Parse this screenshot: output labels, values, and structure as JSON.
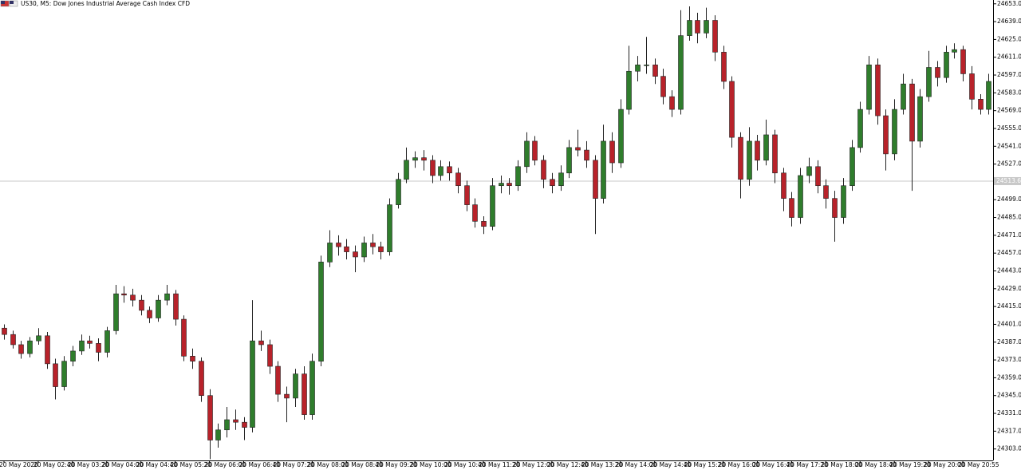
{
  "chart_data": {
    "type": "candlestick",
    "title": "US30, M5:  Dow Jones Industrial Average Cash Index CFD",
    "up_color": "#2f7d2c",
    "down_color": "#b8222a",
    "price_line": 24513.6,
    "ylim": [
      24294,
      24656
    ],
    "yticks": [
      {
        "value": 24303,
        "label": "24303.0"
      },
      {
        "value": 24317,
        "label": "24317.0"
      },
      {
        "value": 24331,
        "label": "24331.0"
      },
      {
        "value": 24345,
        "label": "24345.0"
      },
      {
        "value": 24359,
        "label": "24359.0"
      },
      {
        "value": 24373,
        "label": "24373.0"
      },
      {
        "value": 24387,
        "label": "24387.0"
      },
      {
        "value": 24401,
        "label": "24401.0"
      },
      {
        "value": 24415,
        "label": "24415.0"
      },
      {
        "value": 24429,
        "label": "24429.0"
      },
      {
        "value": 24443,
        "label": "24443.0"
      },
      {
        "value": 24457,
        "label": "24457.0"
      },
      {
        "value": 24471,
        "label": "24471.0"
      },
      {
        "value": 24485,
        "label": "24485.0"
      },
      {
        "value": 24499,
        "label": "24499.0"
      },
      {
        "value": 24513,
        "label": "24513.0"
      },
      {
        "value": 24527,
        "label": "24527.0"
      },
      {
        "value": 24541,
        "label": "24541.0"
      },
      {
        "value": 24555,
        "label": "24555.0"
      },
      {
        "value": 24569,
        "label": "24569.0"
      },
      {
        "value": 24583,
        "label": "24583.0"
      },
      {
        "value": 24597,
        "label": "24597.0"
      },
      {
        "value": 24611,
        "label": "24611.0"
      },
      {
        "value": 24625,
        "label": "24625.0"
      },
      {
        "value": 24639,
        "label": "24639.0"
      },
      {
        "value": 24653,
        "label": "24653.0"
      }
    ],
    "categories": [
      "20 May 2020",
      null,
      null,
      null,
      "20 May 02:40",
      null,
      null,
      null,
      "20 May 03:20",
      null,
      null,
      null,
      "20 May 04:00",
      null,
      null,
      null,
      "20 May 04:40",
      null,
      null,
      null,
      "20 May 05:20",
      null,
      null,
      null,
      "20 May 06:00",
      null,
      null,
      null,
      "20 May 06:40",
      null,
      null,
      null,
      "20 May 07:20",
      null,
      null,
      null,
      "20 May 08:00",
      null,
      null,
      null,
      "20 May 08:40",
      null,
      null,
      null,
      "20 May 09:20",
      null,
      null,
      null,
      "20 May 10:00",
      null,
      null,
      null,
      "20 May 10:40",
      null,
      null,
      null,
      "20 May 11:20",
      null,
      null,
      null,
      "20 May 12:00",
      null,
      null,
      null,
      "20 May 12:40",
      null,
      null,
      null,
      "20 May 13:20",
      null,
      null,
      null,
      "20 May 14:00",
      null,
      null,
      null,
      "20 May 14:40",
      null,
      null,
      null,
      "20 May 15:20",
      null,
      null,
      null,
      "20 May 16:00",
      null,
      null,
      null,
      "20 May 16:40",
      null,
      null,
      null,
      "20 May 17:20",
      null,
      null,
      null,
      "20 May 18:00",
      null,
      null,
      null,
      "20 May 18:40",
      null,
      null,
      null,
      "20 May 19:20",
      null,
      null,
      null,
      "20 May 20:00",
      null,
      null,
      null,
      "20 May 20:55",
      null,
      null,
      null
    ],
    "ohlc": [
      [
        24398,
        24401,
        24389,
        24393
      ],
      [
        24393,
        24396,
        24382,
        24385
      ],
      [
        24385,
        24388,
        24374,
        24378
      ],
      [
        24378,
        24391,
        24375,
        24388
      ],
      [
        24388,
        24398,
        24385,
        24392
      ],
      [
        24392,
        24395,
        24366,
        24370
      ],
      [
        24370,
        24374,
        24342,
        24352
      ],
      [
        24352,
        24376,
        24349,
        24372
      ],
      [
        24372,
        24384,
        24368,
        24380
      ],
      [
        24380,
        24393,
        24377,
        24388
      ],
      [
        24388,
        24392,
        24382,
        24386
      ],
      [
        24386,
        24390,
        24372,
        24379
      ],
      [
        24379,
        24399,
        24375,
        24396
      ],
      [
        24396,
        24432,
        24393,
        24425
      ],
      [
        24425,
        24431,
        24418,
        24424
      ],
      [
        24424,
        24429,
        24415,
        24420
      ],
      [
        24420,
        24424,
        24408,
        24412
      ],
      [
        24412,
        24415,
        24402,
        24406
      ],
      [
        24406,
        24424,
        24403,
        24420
      ],
      [
        24420,
        24432,
        24416,
        24425
      ],
      [
        24425,
        24428,
        24400,
        24405
      ],
      [
        24405,
        24408,
        24372,
        24376
      ],
      [
        24376,
        24382,
        24366,
        24372
      ],
      [
        24372,
        24375,
        24340,
        24345
      ],
      [
        24345,
        24350,
        24295,
        24310
      ],
      [
        24310,
        24323,
        24304,
        24318
      ],
      [
        24318,
        24336,
        24312,
        24326
      ],
      [
        24326,
        24334,
        24318,
        24324
      ],
      [
        24324,
        24328,
        24310,
        24320
      ],
      [
        24320,
        24420,
        24316,
        24388
      ],
      [
        24388,
        24396,
        24380,
        24385
      ],
      [
        24385,
        24389,
        24362,
        24368
      ],
      [
        24368,
        24372,
        24340,
        24346
      ],
      [
        24346,
        24352,
        24324,
        24343
      ],
      [
        24343,
        24366,
        24336,
        24362
      ],
      [
        24362,
        24368,
        24326,
        24330
      ],
      [
        24330,
        24378,
        24326,
        24372
      ],
      [
        24372,
        24455,
        24368,
        24450
      ],
      [
        24450,
        24475,
        24446,
        24465
      ],
      [
        24465,
        24471,
        24455,
        24462
      ],
      [
        24462,
        24468,
        24452,
        24458
      ],
      [
        24458,
        24463,
        24442,
        24454
      ],
      [
        24454,
        24470,
        24450,
        24465
      ],
      [
        24465,
        24472,
        24456,
        24462
      ],
      [
        24462,
        24466,
        24452,
        24458
      ],
      [
        24458,
        24500,
        24455,
        24495
      ],
      [
        24495,
        24520,
        24492,
        24515
      ],
      [
        24515,
        24540,
        24512,
        24530
      ],
      [
        24530,
        24537,
        24524,
        24532
      ],
      [
        24532,
        24538,
        24522,
        24530
      ],
      [
        24530,
        24534,
        24512,
        24518
      ],
      [
        24518,
        24530,
        24514,
        24525
      ],
      [
        24525,
        24529,
        24514,
        24520
      ],
      [
        24520,
        24524,
        24504,
        24510
      ],
      [
        24510,
        24514,
        24490,
        24495
      ],
      [
        24495,
        24500,
        24477,
        24482
      ],
      [
        24482,
        24486,
        24472,
        24478
      ],
      [
        24478,
        24516,
        24475,
        24510
      ],
      [
        24510,
        24518,
        24504,
        24512
      ],
      [
        24512,
        24516,
        24503,
        24510
      ],
      [
        24510,
        24530,
        24506,
        24525
      ],
      [
        24525,
        24552,
        24520,
        24545
      ],
      [
        24545,
        24549,
        24526,
        24530
      ],
      [
        24530,
        24534,
        24508,
        24515
      ],
      [
        24515,
        24520,
        24504,
        24510
      ],
      [
        24510,
        24526,
        24506,
        24520
      ],
      [
        24520,
        24546,
        24516,
        24540
      ],
      [
        24540,
        24554,
        24533,
        24538
      ],
      [
        24538,
        24545,
        24524,
        24530
      ],
      [
        24530,
        24534,
        24472,
        24500
      ],
      [
        24500,
        24558,
        24496,
        24545
      ],
      [
        24545,
        24552,
        24520,
        24528
      ],
      [
        24528,
        24578,
        24524,
        24570
      ],
      [
        24570,
        24620,
        24566,
        24600
      ],
      [
        24600,
        24612,
        24592,
        24605
      ],
      [
        24605,
        24627,
        24598,
        24605
      ],
      [
        24605,
        24610,
        24590,
        24596
      ],
      [
        24596,
        24602,
        24574,
        24580
      ],
      [
        24580,
        24585,
        24564,
        24570
      ],
      [
        24570,
        24648,
        24566,
        24628
      ],
      [
        24628,
        24651,
        24624,
        24640
      ],
      [
        24640,
        24646,
        24622,
        24630
      ],
      [
        24630,
        24650,
        24626,
        24640
      ],
      [
        24640,
        24644,
        24608,
        24615
      ],
      [
        24615,
        24620,
        24586,
        24592
      ],
      [
        24592,
        24596,
        24540,
        24548
      ],
      [
        24548,
        24552,
        24500,
        24515
      ],
      [
        24515,
        24556,
        24510,
        24545
      ],
      [
        24545,
        24550,
        24522,
        24530
      ],
      [
        24530,
        24562,
        24526,
        24550
      ],
      [
        24550,
        24554,
        24512,
        24520
      ],
      [
        24520,
        24524,
        24490,
        24500
      ],
      [
        24500,
        24505,
        24478,
        24485
      ],
      [
        24485,
        24524,
        24480,
        24518
      ],
      [
        24518,
        24532,
        24512,
        24525
      ],
      [
        24525,
        24530,
        24504,
        24510
      ],
      [
        24510,
        24515,
        24492,
        24500
      ],
      [
        24500,
        24506,
        24466,
        24485
      ],
      [
        24485,
        24516,
        24480,
        24510
      ],
      [
        24510,
        24546,
        24506,
        24540
      ],
      [
        24540,
        24576,
        24536,
        24570
      ],
      [
        24570,
        24612,
        24566,
        24605
      ],
      [
        24605,
        24610,
        24558,
        24565
      ],
      [
        24565,
        24570,
        24522,
        24535
      ],
      [
        24535,
        24578,
        24530,
        24570
      ],
      [
        24570,
        24598,
        24566,
        24590
      ],
      [
        24590,
        24594,
        24506,
        24545
      ],
      [
        24545,
        24586,
        24540,
        24580
      ],
      [
        24580,
        24616,
        24576,
        24603
      ],
      [
        24603,
        24608,
        24588,
        24595
      ],
      [
        24595,
        24620,
        24591,
        24615
      ],
      [
        24615,
        24622,
        24610,
        24617
      ],
      [
        24617,
        24620,
        24592,
        24598
      ],
      [
        24598,
        24604,
        24570,
        24578
      ],
      [
        24578,
        24582,
        24566,
        24570
      ],
      [
        24570,
        24598,
        24566,
        24592
      ]
    ]
  }
}
